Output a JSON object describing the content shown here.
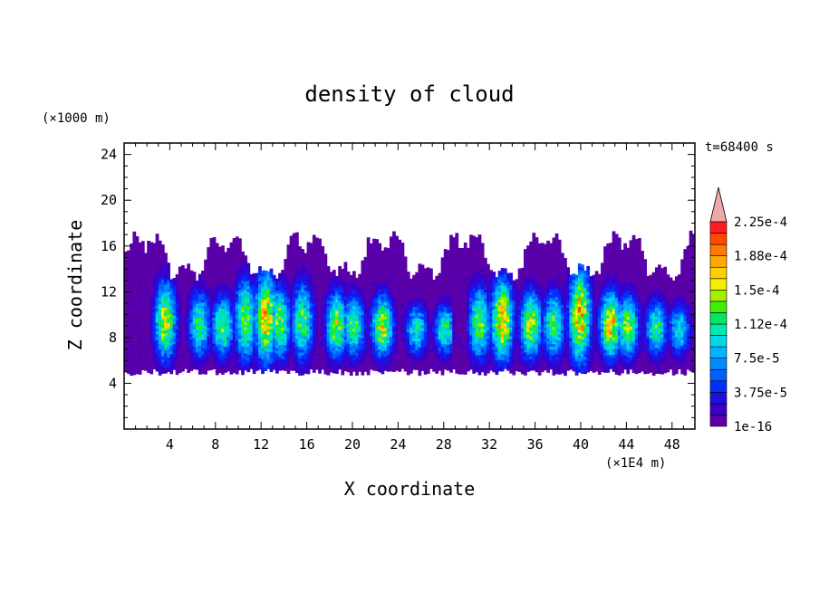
{
  "chart_data": {
    "type": "heatmap",
    "title": "density of cloud",
    "xlabel": "X coordinate",
    "ylabel": "Z coordinate",
    "x_unit": "(×1E4 m)",
    "y_unit": "(×1000 m)",
    "time_label": "t=68400 s",
    "xlim": [
      0,
      50
    ],
    "ylim": [
      0,
      25
    ],
    "x_ticks": [
      4,
      8,
      12,
      16,
      20,
      24,
      28,
      32,
      36,
      40,
      44,
      48
    ],
    "y_ticks": [
      4,
      8,
      12,
      16,
      20,
      24
    ],
    "colorbar": {
      "levels": [
        "1e-16",
        "3.75e-5",
        "7.5e-5",
        "1.12e-4",
        "1.5e-4",
        "1.88e-4",
        "2.25e-4"
      ],
      "level_values": [
        1e-16,
        3.75e-05,
        7.5e-05,
        0.000112,
        0.00015,
        0.000188,
        0.000225
      ],
      "max_value": 0.00025,
      "colors": [
        "#5a00a8",
        "#3a00c8",
        "#1f10e0",
        "#0030ff",
        "#0060ff",
        "#008cff",
        "#00b4ff",
        "#00d8e8",
        "#00e8b0",
        "#00e860",
        "#40f000",
        "#a0f000",
        "#f0f000",
        "#ffd000",
        "#ffaa00",
        "#ff7800",
        "#ff4800",
        "#ff1e1e"
      ],
      "overflow_color": "#f0a8a8"
    },
    "cloud_layer_z": [
      5,
      17
    ],
    "convective_cores": [
      {
        "x": 3.5,
        "top": 12.5,
        "peak": 0.00017
      },
      {
        "x": 6.5,
        "top": 11.5,
        "peak": 0.00013
      },
      {
        "x": 8.5,
        "top": 11.0,
        "peak": 0.00014
      },
      {
        "x": 10.5,
        "top": 13.0,
        "peak": 0.00015
      },
      {
        "x": 12.3,
        "top": 13.5,
        "peak": 0.000195
      },
      {
        "x": 13.5,
        "top": 12.0,
        "peak": 0.00015
      },
      {
        "x": 15.5,
        "top": 12.5,
        "peak": 0.00014
      },
      {
        "x": 18.5,
        "top": 11.5,
        "peak": 0.00016
      },
      {
        "x": 20.0,
        "top": 11.0,
        "peak": 0.00014
      },
      {
        "x": 22.5,
        "top": 11.0,
        "peak": 0.00017
      },
      {
        "x": 25.5,
        "top": 10.0,
        "peak": 0.00012
      },
      {
        "x": 28.0,
        "top": 10.0,
        "peak": 0.00013
      },
      {
        "x": 31.0,
        "top": 12.0,
        "peak": 0.00015
      },
      {
        "x": 33.0,
        "top": 13.0,
        "peak": 0.000195
      },
      {
        "x": 35.5,
        "top": 11.5,
        "peak": 0.00017
      },
      {
        "x": 37.5,
        "top": 11.5,
        "peak": 0.00014
      },
      {
        "x": 39.8,
        "top": 14.0,
        "peak": 0.000195
      },
      {
        "x": 42.5,
        "top": 11.5,
        "peak": 0.00019
      },
      {
        "x": 44.0,
        "top": 11.0,
        "peak": 0.00016
      },
      {
        "x": 46.5,
        "top": 10.5,
        "peak": 0.00013
      },
      {
        "x": 48.5,
        "top": 10.0,
        "peak": 0.00011
      }
    ]
  }
}
